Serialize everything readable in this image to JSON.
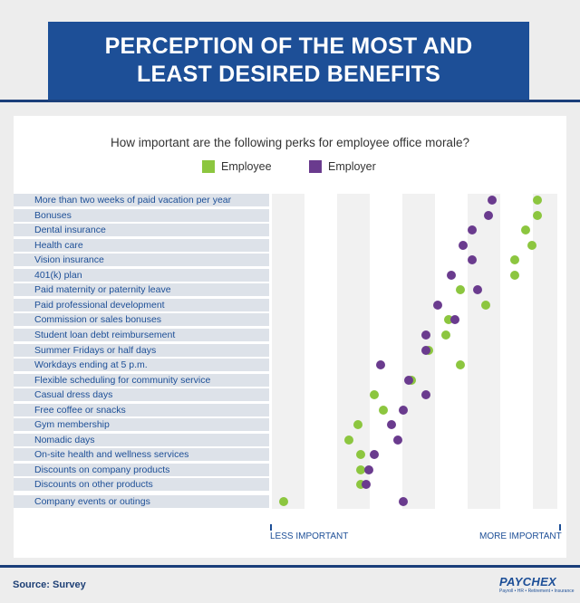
{
  "header": {
    "title_line1": "PERCEPTION OF THE MOST AND",
    "title_line2": "LEAST DESIRED BENEFITS"
  },
  "footer": {
    "source": "Source: Survey",
    "logo_text": "PAYCHEX",
    "logo_tagline": "Payroll • HR • Retirement • Insurance"
  },
  "colors": {
    "employee": "#8cc63f",
    "employer": "#6a3b8e",
    "title_bg": "#1d4f97"
  },
  "chart_data": {
    "type": "scatter",
    "title": "How important are the following perks for employee office morale?",
    "x_axis": {
      "min_label": "LESS IMPORTANT",
      "max_label": "MORE IMPORTANT",
      "range": [
        0,
        100
      ]
    },
    "legend": [
      {
        "name": "Employee",
        "color": "#8cc63f"
      },
      {
        "name": "Employer",
        "color": "#6a3b8e"
      }
    ],
    "categories": [
      "More than two weeks of paid vacation per year",
      "Bonuses",
      "Dental insurance",
      "Health care",
      "Vision insurance",
      "401(k) plan",
      "Paid maternity or paternity leave",
      "Paid professional development",
      "Commission or sales bonuses",
      "Student loan debt reimbursement",
      "Summer Fridays or half days",
      "Workdays ending at 5 p.m.",
      "Flexible scheduling for community service",
      "Casual dress days",
      "Free coffee or snacks",
      "Gym membership",
      "Nomadic days",
      "On-site health and wellness services",
      "Discounts on company products",
      "Discounts on other products",
      "Company events or outings"
    ],
    "series": [
      {
        "name": "Employee",
        "values": [
          93,
          93,
          89,
          91,
          85,
          85,
          66,
          75,
          62,
          61,
          55,
          66,
          49,
          36,
          39,
          30,
          27,
          31,
          31,
          31,
          4
        ]
      },
      {
        "name": "Employer",
        "values": [
          77,
          76,
          70,
          67,
          70,
          63,
          72,
          58,
          64,
          54,
          54,
          38,
          48,
          54,
          46,
          42,
          44,
          36,
          34,
          33,
          46
        ]
      }
    ]
  }
}
